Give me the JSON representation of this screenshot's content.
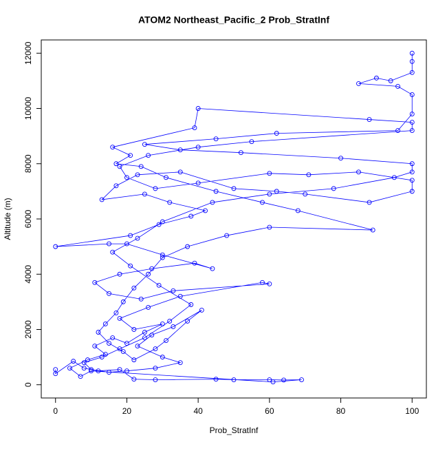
{
  "chart_data": {
    "type": "scatter-line",
    "title": "ATOM2 Northeast_Pacific_2 Prob_StratInf",
    "x_label": "Prob_StratInf",
    "y_label": "Altitude (m)",
    "xlim": [
      -4,
      104
    ],
    "ylim": [
      -480,
      12480
    ],
    "xticks": [
      0,
      20,
      40,
      60,
      80,
      100
    ],
    "yticks": [
      0,
      2000,
      4000,
      6000,
      8000,
      10000,
      12000
    ],
    "series": [
      {
        "color": "#0000ff",
        "x": [
          0,
          0,
          5,
          8,
          12,
          18,
          22,
          28,
          45,
          50,
          60,
          64,
          69,
          61,
          10,
          7,
          4,
          9,
          14,
          11,
          16,
          20,
          25,
          30,
          22,
          18,
          26,
          35,
          58,
          60,
          33,
          24,
          15,
          11,
          18,
          27,
          39,
          44,
          30,
          20,
          15,
          0,
          21,
          29,
          38,
          42,
          32,
          25,
          13,
          17,
          23,
          35,
          50,
          62,
          70,
          88,
          100,
          100,
          85,
          71,
          60,
          40,
          28,
          20,
          18,
          26,
          40,
          55,
          100,
          100,
          88,
          40,
          39,
          16,
          21,
          17,
          24,
          31,
          45,
          58,
          68,
          89,
          60,
          48,
          37,
          30,
          26,
          22,
          19,
          17,
          14,
          12,
          15,
          19,
          22,
          28,
          31,
          37,
          41,
          33,
          27,
          23,
          30,
          35,
          28,
          20,
          15,
          10,
          8,
          13,
          18,
          25,
          32,
          38,
          29,
          21,
          16,
          23,
          30,
          44,
          60,
          78,
          95,
          100,
          100,
          80,
          52,
          35,
          25,
          45,
          62,
          96,
          100,
          100,
          96,
          85,
          90,
          94,
          100,
          100,
          100
        ],
        "values": [
          550,
          400,
          850,
          600,
          500,
          550,
          200,
          180,
          200,
          180,
          180,
          170,
          180,
          100,
          500,
          300,
          600,
          900,
          1100,
          1400,
          1700,
          1500,
          1900,
          2200,
          2000,
          2400,
          2800,
          3200,
          3700,
          3650,
          3400,
          3100,
          3300,
          3700,
          4000,
          4200,
          4400,
          4200,
          4700,
          5100,
          5100,
          5000,
          5400,
          5800,
          6100,
          6300,
          6600,
          6900,
          6700,
          7200,
          7600,
          7700,
          7100,
          7000,
          6900,
          6600,
          7000,
          7400,
          7700,
          7600,
          7650,
          7300,
          7100,
          7500,
          7900,
          8300,
          8600,
          8800,
          9200,
          9500,
          9600,
          10000,
          9300,
          8600,
          8300,
          8000,
          7900,
          7500,
          7000,
          6600,
          6300,
          5600,
          5700,
          5400,
          5000,
          4600,
          4000,
          3500,
          3000,
          2600,
          2200,
          1900,
          1500,
          1200,
          900,
          1300,
          1600,
          2300,
          2700,
          2100,
          1800,
          1400,
          1000,
          800,
          600,
          500,
          450,
          550,
          800,
          1000,
          1300,
          1700,
          2300,
          2900,
          3600,
          4300,
          4800,
          5300,
          5900,
          6600,
          6900,
          7100,
          7500,
          7700,
          8000,
          8200,
          8400,
          8500,
          8700,
          8900,
          9100,
          9200,
          9800,
          10500,
          10800,
          10900,
          11100,
          11000,
          11300,
          11700,
          12000
        ]
      }
    ]
  }
}
